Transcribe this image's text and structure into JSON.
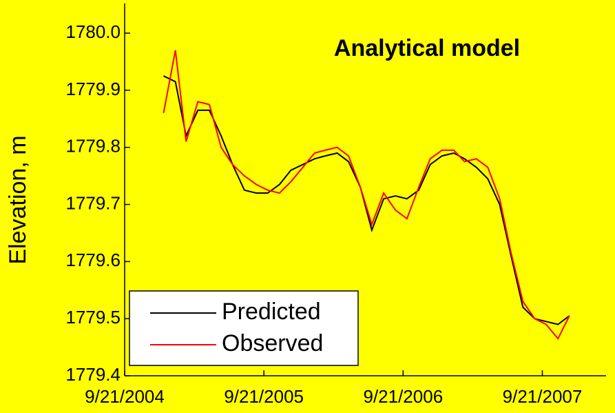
{
  "chart_data": {
    "type": "line",
    "title": "Analytical model",
    "y_label": "Elevation, m",
    "x": [
      "2005-01-01",
      "2005-02-01",
      "2005-03-01",
      "2005-04-01",
      "2005-05-01",
      "2005-06-01",
      "2005-07-01",
      "2005-08-01",
      "2005-09-01",
      "2005-10-01",
      "2005-11-01",
      "2005-12-01",
      "2006-01-01",
      "2006-02-01",
      "2006-03-01",
      "2006-04-01",
      "2006-05-01",
      "2006-06-01",
      "2006-07-01",
      "2006-08-01",
      "2006-09-01",
      "2006-10-01",
      "2006-11-01",
      "2006-12-01",
      "2007-01-01",
      "2007-02-01",
      "2007-03-01",
      "2007-04-01",
      "2007-05-01",
      "2007-06-01",
      "2007-07-01",
      "2007-08-01",
      "2007-09-01",
      "2007-10-01",
      "2007-11-01",
      "2007-12-01"
    ],
    "series": [
      {
        "name": "Predicted",
        "color": "#000000",
        "values": [
          1779.925,
          1779.915,
          1779.82,
          1779.865,
          1779.865,
          1779.82,
          1779.77,
          1779.725,
          1779.72,
          1779.72,
          1779.735,
          1779.76,
          1779.77,
          1779.78,
          1779.785,
          1779.79,
          1779.775,
          1779.73,
          1779.655,
          1779.71,
          1779.715,
          1779.71,
          1779.725,
          1779.77,
          1779.785,
          1779.79,
          1779.78,
          1779.765,
          1779.745,
          1779.7,
          1779.61,
          1779.52,
          1779.5,
          1779.495,
          1779.49,
          1779.505
        ]
      },
      {
        "name": "Observed",
        "color": "#ff0000",
        "values": [
          1779.86,
          1779.97,
          1779.81,
          1779.88,
          1779.875,
          1779.8,
          1779.77,
          1779.75,
          1779.735,
          1779.725,
          1779.72,
          1779.74,
          1779.765,
          1779.79,
          1779.795,
          1779.8,
          1779.785,
          1779.73,
          1779.665,
          1779.72,
          1779.69,
          1779.675,
          1779.73,
          1779.78,
          1779.795,
          1779.795,
          1779.775,
          1779.78,
          1779.765,
          1779.71,
          1779.615,
          1779.53,
          1779.5,
          1779.49,
          1779.465,
          1779.505
        ]
      }
    ],
    "xlim": [
      "2004-09-21",
      "2008-03-06"
    ],
    "xticks": [
      {
        "value": "2004-09-21",
        "label": "9/21/2004"
      },
      {
        "value": "2005-09-21",
        "label": "9/21/2005"
      },
      {
        "value": "2006-09-21",
        "label": "9/21/2006"
      },
      {
        "value": "2007-09-21",
        "label": "9/21/2007"
      }
    ],
    "ylim": [
      1779.4,
      1780.052
    ],
    "yticks": [
      {
        "value": 1779.4,
        "label": "1779.4"
      },
      1779.5,
      1779.6,
      1779.7,
      1779.8,
      1779.9,
      {
        "value": 1780.0,
        "label": "1780.0"
      }
    ],
    "legend": "lower left"
  }
}
